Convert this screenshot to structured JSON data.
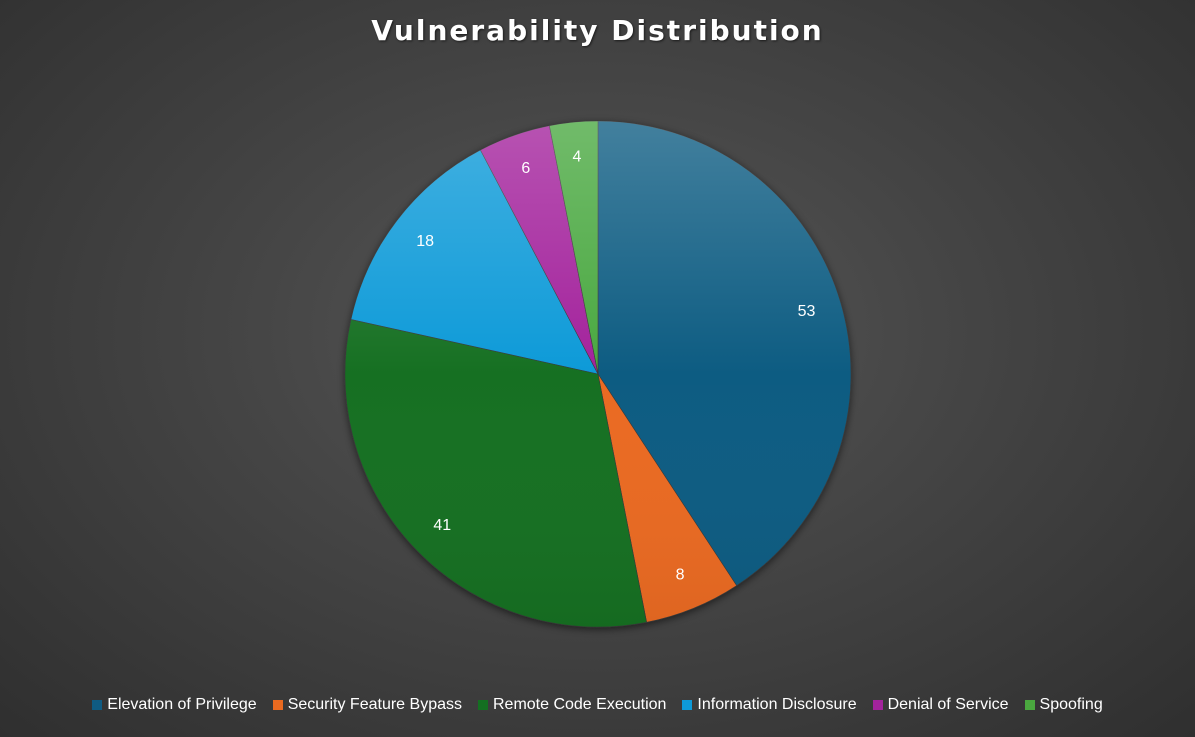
{
  "chart_data": {
    "type": "pie",
    "title": "Vulnerability Distribution",
    "categories": [
      "Elevation of Privilege",
      "Security Feature Bypass",
      "Remote Code Execution",
      "Information Disclosure",
      "Denial of Service",
      "Spoofing"
    ],
    "values": [
      53,
      8,
      41,
      18,
      6,
      4
    ],
    "colors": [
      "#0f5b82",
      "#ea6a20",
      "#146f21",
      "#0e9ad8",
      "#a3239c",
      "#4aa83f"
    ],
    "data_labels_shown": true,
    "legend_position": "bottom",
    "start_angle": "12 o'clock",
    "direction": "clockwise"
  }
}
